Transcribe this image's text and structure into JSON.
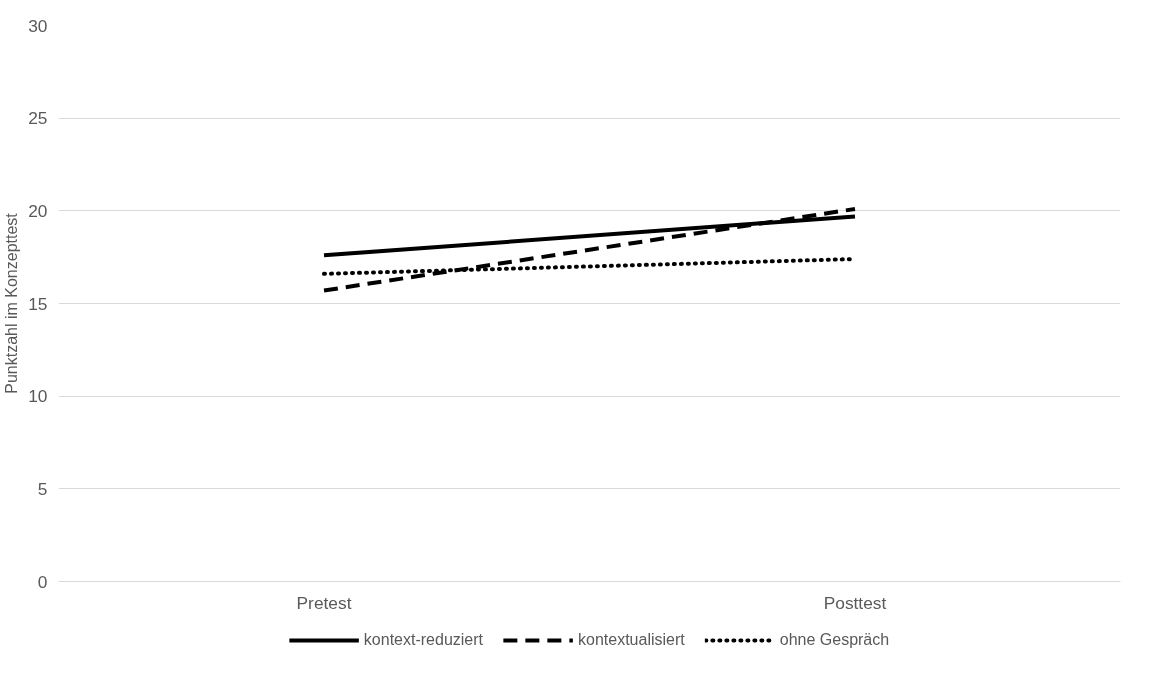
{
  "chart_data": {
    "type": "line",
    "ylabel": "Punktzahl im Konzepttest",
    "categories": [
      "Pretest",
      "Posttest"
    ],
    "series": [
      {
        "name": "kontext-reduziert",
        "color": "#000000",
        "values": [
          17.6,
          19.7
        ],
        "line_style": "solid"
      },
      {
        "name": "kontextualisiert",
        "color": "#000000",
        "values": [
          15.7,
          20.1
        ],
        "line_style": "dashed"
      },
      {
        "name": "ohne Gespräch",
        "color": "#000000",
        "values": [
          16.6,
          17.4
        ],
        "line_style": "dotted"
      }
    ],
    "ylim": [
      0,
      30
    ],
    "yticks": [
      0,
      5,
      10,
      15,
      20,
      25,
      30
    ],
    "grid": "y",
    "legend": "bottom",
    "marker": "none"
  }
}
